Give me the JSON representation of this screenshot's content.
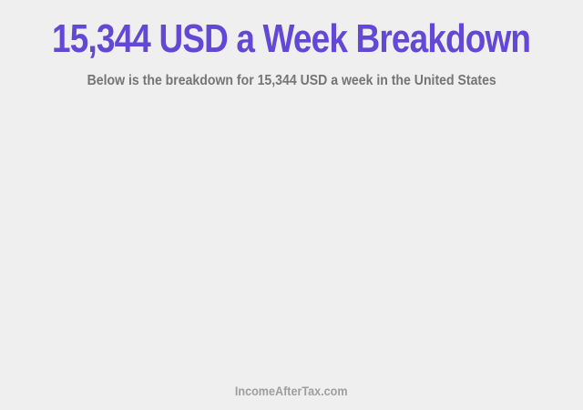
{
  "page": {
    "background_color": "#efefef",
    "title": {
      "text": "15,344 USD a Week Breakdown",
      "color": "#6347d5"
    },
    "subtitle": {
      "text": "Below is the breakdown for 15,344 USD a week in the United States",
      "color": "#757575"
    },
    "chart_area": {
      "note_visible_content": ""
    },
    "footer": {
      "text": "IncomeAfterTax.com",
      "color": "#9e9e9e"
    }
  }
}
